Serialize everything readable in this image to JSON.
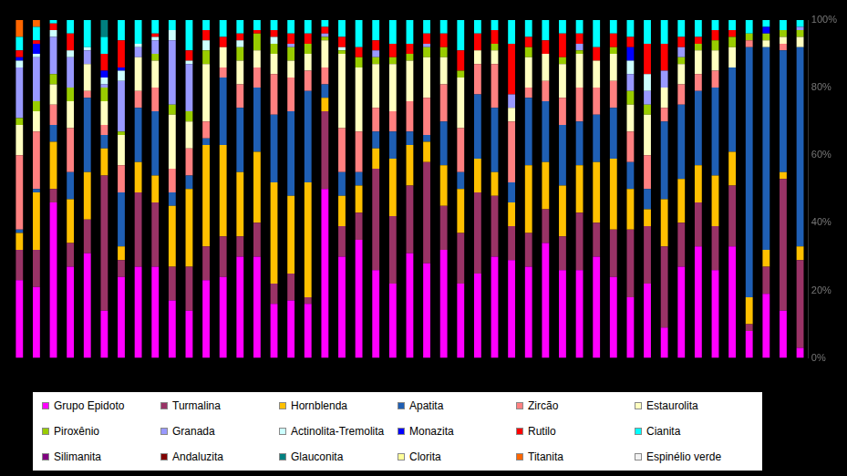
{
  "chart_data": {
    "type": "bar",
    "stacked": true,
    "grid": false,
    "legend": "bottom",
    "categories": [
      null,
      null,
      null,
      null,
      null,
      null,
      null,
      null,
      null,
      null,
      null,
      null,
      null,
      null,
      null,
      null,
      null,
      null,
      null,
      null,
      null,
      null,
      null,
      null,
      null,
      null,
      null,
      null,
      null,
      null,
      null,
      null,
      null,
      null,
      null,
      null,
      null,
      null,
      null,
      null,
      null,
      null,
      null,
      null,
      null,
      null,
      null
    ],
    "ylim": [
      0,
      100
    ],
    "yticks": [
      {
        "value": 0,
        "label": "0%"
      },
      {
        "value": 20,
        "label": "20%"
      },
      {
        "value": 40,
        "label": "40%"
      },
      {
        "value": 60,
        "label": "60%"
      },
      {
        "value": 80,
        "label": "80%"
      },
      {
        "value": 100,
        "label": "100%"
      }
    ],
    "series": [
      {
        "name": "Grupo Epidoto",
        "color": "#ff00ff",
        "values": [
          23,
          21,
          46,
          27,
          31,
          14,
          24,
          27,
          27,
          17,
          14,
          23,
          24,
          30,
          30,
          16,
          17,
          16,
          50,
          30,
          35,
          26,
          22,
          31,
          28,
          32,
          22,
          25,
          30,
          29,
          27,
          34,
          26,
          26,
          30,
          24,
          18,
          22,
          9,
          27,
          33,
          26,
          33,
          8,
          19,
          14,
          3
        ]
      },
      {
        "name": "Turmalina",
        "color": "#993366",
        "values": [
          9,
          11,
          4,
          7,
          10,
          40,
          5,
          22,
          19,
          10,
          13,
          10,
          12,
          6,
          10,
          6,
          8,
          2,
          23,
          9,
          8,
          30,
          20,
          20,
          30,
          13,
          15,
          24,
          18,
          10,
          10,
          10,
          10,
          17,
          10,
          14,
          20,
          17,
          24,
          13,
          13,
          13,
          18,
          2,
          8,
          39,
          26
        ]
      },
      {
        "name": "Hornblenda",
        "color": "#ffc000",
        "values": [
          5,
          17,
          14,
          13,
          14,
          8,
          4,
          9,
          8,
          18,
          23,
          30,
          27,
          19,
          21,
          30,
          23,
          34,
          4,
          9,
          8,
          6,
          17,
          12,
          6,
          12,
          13,
          10,
          7,
          7,
          20,
          14,
          15,
          14,
          18,
          21,
          12,
          5,
          14,
          13,
          11,
          15,
          10,
          8,
          5,
          2,
          4
        ]
      },
      {
        "name": "Apatita",
        "color": "#1f5fb4",
        "values": [
          1,
          1,
          5,
          8,
          22,
          4,
          16,
          16,
          19,
          4,
          4,
          2,
          20,
          19,
          19,
          20,
          25,
          27,
          4,
          7,
          4,
          5,
          8,
          4,
          2,
          13,
          5,
          19,
          19,
          6,
          20,
          18,
          18,
          13,
          14,
          15,
          8,
          6,
          23,
          22,
          22,
          26,
          25,
          74,
          60,
          36,
          59
        ]
      },
      {
        "name": "Zircão",
        "color": "#ff8080",
        "values": [
          22,
          17,
          6,
          13,
          2,
          3,
          8,
          5,
          7,
          7,
          8,
          5,
          3,
          7,
          6,
          12,
          10,
          6,
          5,
          13,
          12,
          7,
          6,
          9,
          11,
          11,
          13,
          9,
          13,
          18,
          3,
          6,
          8,
          10,
          8,
          8,
          9,
          10,
          4,
          6,
          5,
          5,
          0,
          2,
          0,
          2,
          0
        ]
      },
      {
        "name": "Estaurolita",
        "color": "#ffffc0",
        "values": [
          9,
          6,
          6,
          8,
          8,
          7,
          9,
          10,
          8,
          16,
          8,
          17,
          6,
          7,
          5,
          6,
          5,
          5,
          8,
          22,
          19,
          13,
          14,
          12,
          12,
          8,
          15,
          4,
          4,
          4,
          9,
          8,
          10,
          10,
          8,
          8,
          8,
          12,
          6,
          6,
          7,
          6,
          6,
          0,
          2,
          2,
          3
        ]
      },
      {
        "name": "Piroxênio",
        "color": "#99cc00",
        "values": [
          2,
          3,
          3,
          4,
          0,
          4,
          1,
          0,
          2,
          3,
          3,
          4,
          0,
          4,
          5,
          3,
          4,
          3,
          1,
          1,
          3,
          2,
          2,
          2,
          3,
          3,
          2,
          0,
          2,
          0,
          3,
          0,
          2,
          1,
          0,
          2,
          4,
          3,
          0,
          2,
          2,
          3,
          3,
          2,
          2,
          2,
          2
        ]
      },
      {
        "name": "Granada",
        "color": "#9999ff",
        "values": [
          15,
          13,
          11,
          9,
          4,
          1,
          15,
          3,
          4,
          19,
          14,
          0,
          0,
          0,
          0,
          0,
          1,
          0,
          1,
          0,
          0,
          2,
          0,
          0,
          1,
          0,
          0,
          0,
          0,
          4,
          0,
          0,
          0,
          2,
          0,
          0,
          5,
          4,
          5,
          3,
          0,
          0,
          0,
          0,
          0,
          0,
          1
        ]
      },
      {
        "name": "Actinolita-Tremolita",
        "color": "#ccffff",
        "values": [
          2,
          1,
          2,
          2,
          1,
          2,
          3,
          1,
          1,
          3,
          1,
          3,
          0,
          2,
          0,
          2,
          0,
          0,
          0,
          1,
          0,
          0,
          0,
          0,
          0,
          0,
          0,
          0,
          0,
          0,
          0,
          0,
          0,
          0,
          0,
          0,
          4,
          5,
          0,
          0,
          0,
          0,
          0,
          0,
          0,
          0,
          0
        ]
      },
      {
        "name": "Monazita",
        "color": "#0000ff",
        "values": [
          1,
          3,
          0,
          0,
          0,
          2,
          1,
          0,
          0,
          0,
          0,
          0,
          0,
          0,
          0,
          0,
          0,
          0,
          0,
          0,
          0,
          0,
          0,
          0,
          0,
          0,
          0,
          0,
          0,
          0,
          0,
          0,
          0,
          0,
          0,
          0,
          4,
          0,
          0,
          0,
          0,
          0,
          0,
          0,
          2,
          0,
          0
        ]
      },
      {
        "name": "Rutilo",
        "color": "#ff0000",
        "values": [
          2,
          1,
          2,
          5,
          0,
          5,
          8,
          0,
          1,
          0,
          3,
          3,
          3,
          2,
          1,
          2,
          3,
          3,
          2,
          3,
          3,
          3,
          4,
          3,
          3,
          4,
          6,
          5,
          4,
          15,
          3,
          4,
          7,
          3,
          4,
          4,
          3,
          9,
          8,
          3,
          2,
          3,
          2,
          0,
          0,
          0,
          0
        ]
      },
      {
        "name": "Cianita",
        "color": "#00ffff",
        "values": [
          4,
          4,
          1,
          4,
          8,
          5,
          6,
          7,
          4,
          3,
          9,
          3,
          5,
          4,
          3,
          3,
          4,
          4,
          2,
          5,
          8,
          6,
          7,
          7,
          4,
          4,
          9,
          4,
          3,
          7,
          5,
          6,
          4,
          4,
          8,
          4,
          5,
          7,
          7,
          5,
          5,
          3,
          3,
          4,
          2,
          3,
          2
        ]
      },
      {
        "name": "Silimanita",
        "color": "#800080",
        "values": [
          0,
          0,
          0,
          0,
          0,
          0,
          0,
          0,
          0,
          0,
          0,
          0,
          0,
          0,
          0,
          0,
          0,
          0,
          0,
          0,
          0,
          0,
          0,
          0,
          0,
          0,
          0,
          0,
          0,
          0,
          0,
          0,
          0,
          0,
          0,
          0,
          0,
          0,
          0,
          0,
          0,
          0,
          0,
          0,
          0,
          0,
          0
        ]
      },
      {
        "name": "Andaluzita",
        "color": "#800000",
        "values": [
          0,
          0,
          0,
          0,
          0,
          0,
          0,
          0,
          0,
          0,
          0,
          0,
          0,
          0,
          0,
          0,
          0,
          0,
          0,
          0,
          0,
          0,
          0,
          0,
          0,
          0,
          0,
          0,
          0,
          0,
          0,
          0,
          0,
          0,
          0,
          0,
          0,
          0,
          0,
          0,
          0,
          0,
          0,
          0,
          0,
          0,
          0
        ]
      },
      {
        "name": "Glauconita",
        "color": "#008080",
        "values": [
          0,
          0,
          0,
          0,
          0,
          5,
          0,
          0,
          0,
          0,
          0,
          0,
          0,
          0,
          0,
          0,
          0,
          0,
          0,
          0,
          0,
          0,
          0,
          0,
          0,
          0,
          0,
          0,
          0,
          0,
          0,
          0,
          0,
          0,
          0,
          0,
          0,
          0,
          0,
          0,
          0,
          0,
          0,
          0,
          0,
          0,
          0
        ]
      },
      {
        "name": "Clorita",
        "color": "#ffff99",
        "values": [
          0,
          0,
          0,
          0,
          0,
          0,
          0,
          0,
          0,
          0,
          0,
          0,
          0,
          0,
          0,
          0,
          0,
          0,
          0,
          0,
          0,
          0,
          0,
          0,
          0,
          0,
          0,
          0,
          0,
          0,
          0,
          0,
          0,
          0,
          0,
          0,
          0,
          0,
          0,
          0,
          0,
          0,
          0,
          0,
          0,
          0,
          0
        ]
      },
      {
        "name": "Titanita",
        "color": "#ff6600",
        "values": [
          5,
          2,
          0,
          0,
          0,
          0,
          0,
          0,
          0,
          0,
          0,
          0,
          0,
          0,
          0,
          0,
          0,
          0,
          0,
          0,
          0,
          0,
          0,
          0,
          0,
          0,
          0,
          0,
          0,
          0,
          0,
          0,
          0,
          0,
          0,
          0,
          0,
          0,
          0,
          0,
          0,
          0,
          0,
          0,
          0,
          0,
          0
        ]
      },
      {
        "name": "Espinélio verde",
        "color": "#f2f2f2",
        "values": [
          0,
          0,
          0,
          0,
          0,
          0,
          0,
          0,
          0,
          0,
          0,
          0,
          0,
          0,
          0,
          0,
          0,
          0,
          0,
          0,
          0,
          0,
          0,
          0,
          0,
          0,
          0,
          0,
          0,
          0,
          0,
          0,
          0,
          0,
          0,
          0,
          0,
          0,
          0,
          0,
          0,
          0,
          0,
          0,
          0,
          0,
          0
        ]
      }
    ]
  }
}
